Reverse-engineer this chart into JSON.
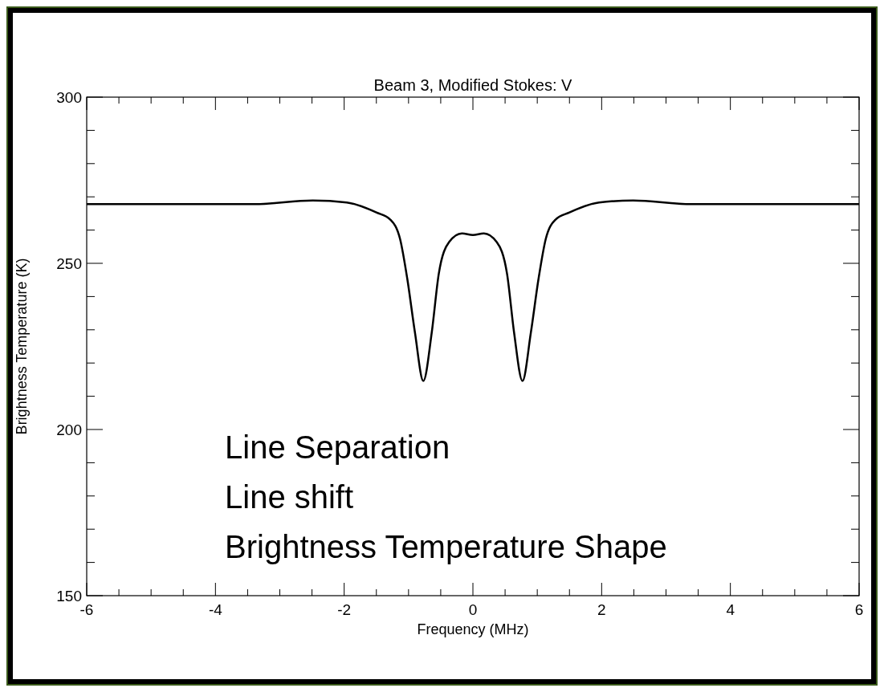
{
  "chart_data": {
    "type": "line",
    "title": "Beam 3, Modified Stokes: V",
    "xlabel": "Frequency (MHz)",
    "ylabel": "Brightness Temperature (K)",
    "x": [
      -6,
      -3.39,
      -2.49,
      -1.96,
      -1.5,
      -1.28,
      -1.13,
      -1.02,
      -0.9,
      -0.77,
      -0.64,
      -0.53,
      -0.37,
      -0.17,
      0,
      0.17,
      0.37,
      0.53,
      0.64,
      0.77,
      0.9,
      1.02,
      1.13,
      1.28,
      1.5,
      1.96,
      2.49,
      3.39,
      6
    ],
    "series": [
      {
        "color": "#000000",
        "values": [
          267.8,
          267.8,
          268.9,
          268.3,
          265.3,
          263.1,
          257.2,
          245.4,
          229.1,
          214.6,
          229.1,
          246.9,
          256.4,
          259,
          258.5,
          259,
          256.4,
          246.9,
          229.1,
          214.6,
          229.1,
          245.4,
          257.2,
          263.1,
          265.3,
          268.3,
          268.9,
          267.8,
          267.8
        ]
      }
    ],
    "xlim": [
      -6,
      6
    ],
    "ylim": [
      150,
      300
    ],
    "xticks": [
      -6,
      {
        "value": -5.5,
        "label": null
      },
      {
        "value": -5,
        "label": null
      },
      {
        "value": -4.5,
        "label": null
      },
      -4,
      {
        "value": -3.5,
        "label": null
      },
      {
        "value": -3,
        "label": null
      },
      {
        "value": -2.5,
        "label": null
      },
      -2,
      {
        "value": -1.5,
        "label": null
      },
      {
        "value": -1,
        "label": null
      },
      {
        "value": -0.5,
        "label": null
      },
      0,
      {
        "value": 0.5,
        "label": null
      },
      {
        "value": 1,
        "label": null
      },
      {
        "value": 1.5,
        "label": null
      },
      2,
      {
        "value": 2.5,
        "label": null
      },
      {
        "value": 3,
        "label": null
      },
      {
        "value": 3.5,
        "label": null
      },
      4,
      {
        "value": 4.5,
        "label": null
      },
      {
        "value": 5,
        "label": null
      },
      {
        "value": 5.5,
        "label": null
      },
      6
    ],
    "yticks": [
      150,
      {
        "value": 160,
        "label": null
      },
      {
        "value": 170,
        "label": null
      },
      {
        "value": 180,
        "label": null
      },
      {
        "value": 190,
        "label": null
      },
      200,
      {
        "value": 210,
        "label": null
      },
      {
        "value": 220,
        "label": null
      },
      {
        "value": 230,
        "label": null
      },
      {
        "value": 240,
        "label": null
      },
      250,
      {
        "value": 260,
        "label": null
      },
      {
        "value": 270,
        "label": null
      },
      {
        "value": 280,
        "label": null
      },
      {
        "value": 290,
        "label": null
      },
      300
    ],
    "marker": "none",
    "line_style": "solid",
    "annotations": [
      "Line Separation",
      "Line shift",
      "Brightness Temperature Shape"
    ]
  }
}
